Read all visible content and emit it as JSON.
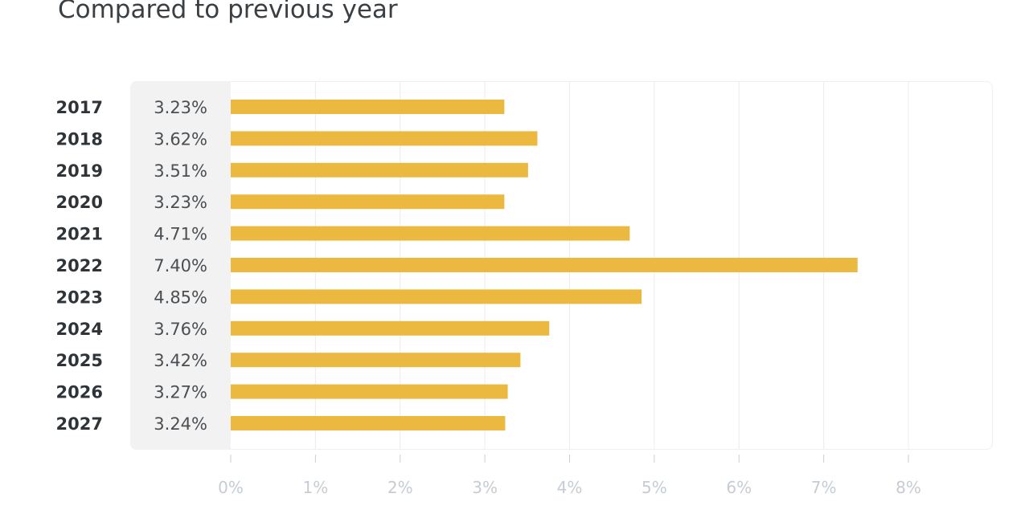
{
  "chart_data": {
    "type": "bar",
    "orientation": "horizontal",
    "title": "Compared to previous year",
    "categories": [
      "2017",
      "2018",
      "2019",
      "2020",
      "2021",
      "2022",
      "2023",
      "2024",
      "2025",
      "2026",
      "2027"
    ],
    "values": [
      3.23,
      3.62,
      3.51,
      3.23,
      4.71,
      7.4,
      4.85,
      3.76,
      3.42,
      3.27,
      3.24
    ],
    "value_labels": [
      "3.23%",
      "3.62%",
      "3.51%",
      "3.23%",
      "4.71%",
      "7.40%",
      "4.85%",
      "3.76%",
      "3.42%",
      "3.27%",
      "3.24%"
    ],
    "xlim": [
      0,
      8
    ],
    "x_ticks": [
      0,
      1,
      2,
      3,
      4,
      5,
      6,
      7,
      8
    ],
    "x_tick_labels": [
      "0%",
      "1%",
      "2%",
      "3%",
      "4%",
      "5%",
      "6%",
      "7%",
      "8%"
    ],
    "grid": true,
    "colors": {
      "bar": "#ecb940",
      "grid": "#ececec",
      "tick_label": "#c5ccd3",
      "category_label": "#2f3438",
      "value_label": "#4a4f54"
    }
  }
}
